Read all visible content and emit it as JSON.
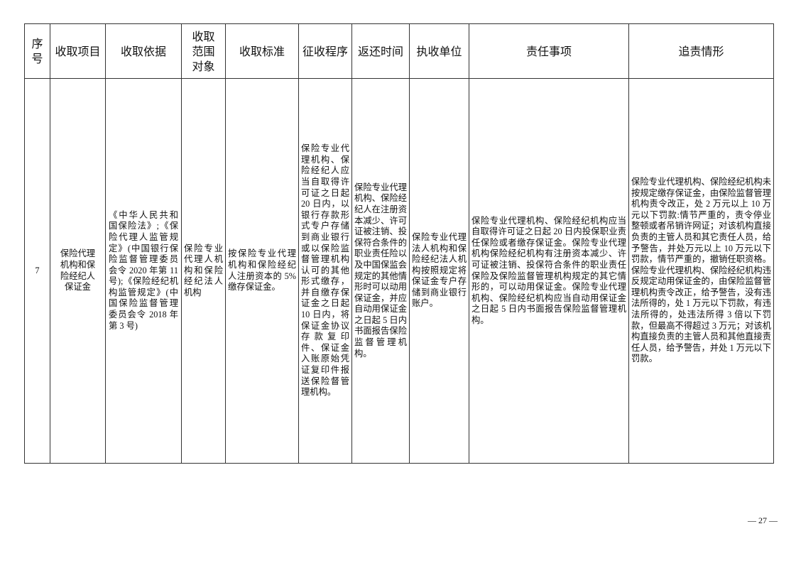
{
  "headers": [
    "序号",
    "收取项目",
    "收取依据",
    "收取范围对象",
    "收取标准",
    "征收程序",
    "返还时间",
    "执收单位",
    "责任事项",
    "追责情形"
  ],
  "row": {
    "index": "7",
    "item": "保险代理机构和保险经纪人保证金",
    "basis": "《中华人民共和国保险法》;《保险代理人监管规定》(中国银行保险监督管理委员会令 2020 年第 11 号);《保险经纪机构监管规定》(中国保险监督管理委员会令 2018 年第 3 号)",
    "scope": "保险专业代理人机构和保险经纪法人机构",
    "standard": "按保险专业代理机构和保险经纪人注册资本的 5%缴存保证金。",
    "procedure": "保险专业代理机构、保险经纪人应当自取得许可证之日起 20 日内，以银行存款形式专户存储到商业银行或以保险监督管理机构认可的其他形式缴存，并自缴存保证金之日起 10 日内，将保证金协议存款复印件、保证金入账原始凭证复印件报送保险督管理机构。",
    "return_time": "保险专业代理机构、保险经纪人在注册资本减少、许可证被注销、投保符合条件的职业责任险以及中国保监会规定的其他情形时可以动用保证金，并应自动用保证金之日起 5 日内书面报告保险监督管理机构。",
    "unit": "保险专业代理法人机构和保险经纪法人机构按照规定将保证金专户存储到商业银行账户。",
    "responsibility": "保险专业代理机构、保险经纪机构应当自取得许可证之日起 20 日内投保职业责任保险或者缴存保证金。保险专业代理机构保险经纪机构有注册资本减少、许可证被注销、投保符合条件的职业责任保险及保险监督管理机构规定的其它情形的，可以动用保证金。保险专业代理机构、保险经纪机构应当自动用保证金之日起 5 日内书面报告保险监督管理机构。",
    "accountability": "保险专业代理机构、保险经纪机构未按规定缴存保证金，由保险监督管理机构责令改正，处 2 万元以上 10 万元以下罚款:情节严重的，责令停业整顿或者吊销许网证；对该机构直接负责的主管人员和其它责任人员，给予警告，并处万元以上 10 万元以下罚款，情节严重的，撤销任职资格。保险专业代理机构、保险经纪机构违反规定动用保证金的，由保险监督管理机构责令改正，给予警告，没有违法所得的，处 1 万元以下罚款，有违法所得的，处违法所得 3 倍以下罚款，但最高不得超过 3 万元；对该机构直接负责的主管人员和其他直接责任人员，给予警告，并处 1 万元以下罚款。"
  },
  "page_number": "— 27 —"
}
